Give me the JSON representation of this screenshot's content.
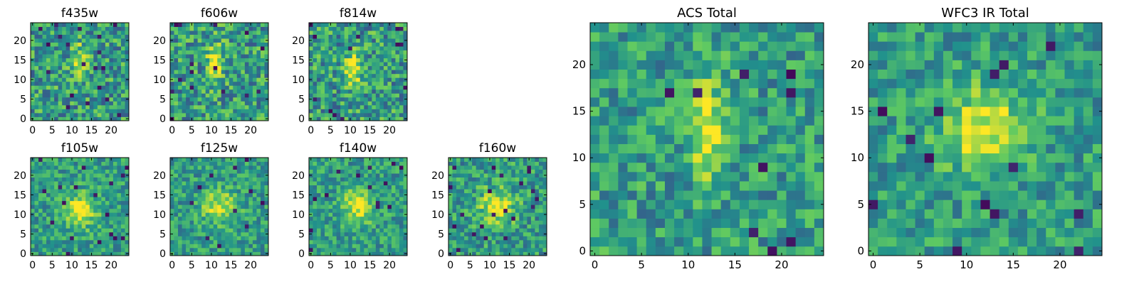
{
  "figure": {
    "background": "#ffffff"
  },
  "colormap": {
    "name": "viridis",
    "stops": [
      "#440154",
      "#3b528b",
      "#21918c",
      "#5ec962",
      "#fde725"
    ]
  },
  "chart_data": [
    {
      "type": "heatmap",
      "title": "f435w",
      "grid": [
        25,
        25
      ],
      "xticks": [
        "0",
        "5",
        "10",
        "15",
        "20"
      ],
      "yticks": [
        "0",
        "5",
        "10",
        "15",
        "20"
      ],
      "xlim": [
        -0.5,
        24.5
      ],
      "ylim": [
        -0.5,
        24.5
      ],
      "peak": {
        "x": 12,
        "y": 15
      },
      "peak_strength": 0.25,
      "noise": 0.55
    },
    {
      "type": "heatmap",
      "title": "f606w",
      "grid": [
        25,
        25
      ],
      "xticks": [
        "0",
        "5",
        "10",
        "15",
        "20"
      ],
      "yticks": [
        "0",
        "5",
        "10",
        "15",
        "20"
      ],
      "xlim": [
        -0.5,
        24.5
      ],
      "ylim": [
        -0.5,
        24.5
      ],
      "peak": {
        "x": 11,
        "y": 14
      },
      "peak_strength": 0.45,
      "noise": 0.55
    },
    {
      "type": "heatmap",
      "title": "f814w",
      "grid": [
        25,
        25
      ],
      "xticks": [
        "0",
        "5",
        "10",
        "15",
        "20"
      ],
      "yticks": [
        "0",
        "5",
        "10",
        "15",
        "20"
      ],
      "xlim": [
        -0.5,
        24.5
      ],
      "ylim": [
        -0.5,
        24.5
      ],
      "peak": {
        "x": 11,
        "y": 13
      },
      "peak_strength": 0.45,
      "noise": 0.55
    },
    {
      "type": "heatmap",
      "title": "ACS Total",
      "grid": [
        25,
        25
      ],
      "xticks": [
        "0",
        "5",
        "10",
        "15",
        "20"
      ],
      "yticks": [
        "0",
        "5",
        "10",
        "15",
        "20"
      ],
      "xlim": [
        -0.5,
        24.5
      ],
      "ylim": [
        -0.5,
        24.5
      ],
      "peak": {
        "x": 12,
        "y": 13
      },
      "peak_strength": 0.5,
      "noise": 0.45
    },
    {
      "type": "heatmap",
      "title": "WFC3 IR Total",
      "grid": [
        25,
        25
      ],
      "xticks": [
        "0",
        "5",
        "10",
        "15",
        "20"
      ],
      "yticks": [
        "0",
        "5",
        "10",
        "15",
        "20"
      ],
      "xlim": [
        -0.5,
        24.5
      ],
      "ylim": [
        -0.5,
        24.5
      ],
      "peak": {
        "x": 12,
        "y": 13
      },
      "peak_strength": 0.45,
      "noise": 0.4
    },
    {
      "type": "heatmap",
      "title": "f105w",
      "grid": [
        25,
        25
      ],
      "xticks": [
        "0",
        "5",
        "10",
        "15",
        "20"
      ],
      "yticks": [
        "0",
        "5",
        "10",
        "15",
        "20"
      ],
      "xlim": [
        -0.5,
        24.5
      ],
      "ylim": [
        -0.5,
        24.5
      ],
      "peak": {
        "x": 12,
        "y": 11
      },
      "peak_strength": 0.4,
      "noise": 0.4
    },
    {
      "type": "heatmap",
      "title": "f125w",
      "grid": [
        25,
        25
      ],
      "xticks": [
        "0",
        "5",
        "10",
        "15",
        "20"
      ],
      "yticks": [
        "0",
        "5",
        "10",
        "15",
        "20"
      ],
      "xlim": [
        -0.5,
        24.5
      ],
      "ylim": [
        -0.5,
        24.5
      ],
      "peak": {
        "x": 12,
        "y": 12
      },
      "peak_strength": 0.35,
      "noise": 0.4
    },
    {
      "type": "heatmap",
      "title": "f140w",
      "grid": [
        25,
        25
      ],
      "xticks": [
        "0",
        "5",
        "10",
        "15",
        "20"
      ],
      "yticks": [
        "0",
        "5",
        "10",
        "15",
        "20"
      ],
      "xlim": [
        -0.5,
        24.5
      ],
      "ylim": [
        -0.5,
        24.5
      ],
      "peak": {
        "x": 12,
        "y": 12
      },
      "peak_strength": 0.4,
      "noise": 0.4
    },
    {
      "type": "heatmap",
      "title": "f160w",
      "grid": [
        25,
        25
      ],
      "xticks": [
        "0",
        "5",
        "10",
        "15",
        "20"
      ],
      "yticks": [
        "0",
        "5",
        "10",
        "15",
        "20"
      ],
      "xlim": [
        -0.5,
        24.5
      ],
      "ylim": [
        -0.5,
        24.5
      ],
      "peak": {
        "x": 12,
        "y": 12
      },
      "peak_strength": 0.45,
      "noise": 0.45
    }
  ]
}
